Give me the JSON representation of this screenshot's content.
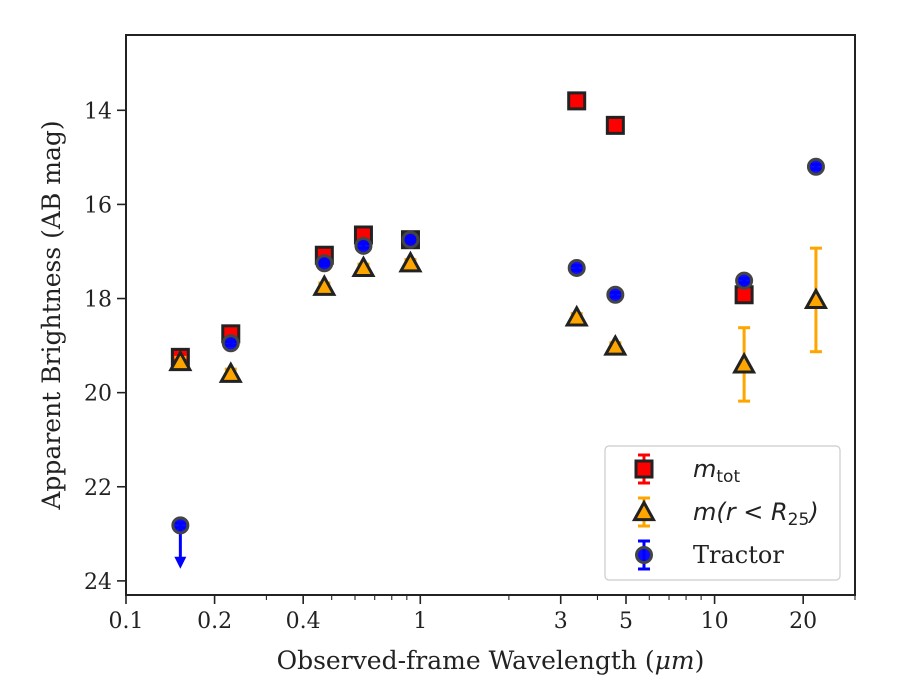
{
  "chart_data": {
    "type": "scatter",
    "xlabel_prefix": "Observed-frame Wavelength (",
    "xlabel_unit": "μm",
    "xlabel_suffix": ")",
    "ylabel": "Apparent Brightness (AB mag)",
    "xscale": "log",
    "xlim": [
      0.1,
      30
    ],
    "ylim": [
      24.3,
      12.4
    ],
    "y_inverted": true,
    "x_ticks": [
      {
        "value": 0.1,
        "label": "0.1"
      },
      {
        "value": 0.2,
        "label": "0.2"
      },
      {
        "value": 0.4,
        "label": "0.4"
      },
      {
        "value": 1,
        "label": "1"
      },
      {
        "value": 3,
        "label": "3"
      },
      {
        "value": 5,
        "label": "5"
      },
      {
        "value": 10,
        "label": "10"
      },
      {
        "value": 20,
        "label": "20"
      }
    ],
    "y_ticks": [
      {
        "value": 14,
        "label": "14"
      },
      {
        "value": 16,
        "label": "16"
      },
      {
        "value": 18,
        "label": "18"
      },
      {
        "value": 20,
        "label": "20"
      },
      {
        "value": 22,
        "label": "22"
      },
      {
        "value": 24,
        "label": "24"
      }
    ],
    "grid": false,
    "legend_position": "lower-right",
    "series": [
      {
        "key": "mtot",
        "legend": {
          "base": "m",
          "sub": "tot"
        },
        "marker": "square",
        "color": "#ff0000",
        "edgecolor": "#222222",
        "errcolor": "#ff0000",
        "points": [
          {
            "x": 0.153,
            "y": 19.25,
            "err": 0.15
          },
          {
            "x": 0.227,
            "y": 18.75,
            "err": 0.1
          },
          {
            "x": 0.472,
            "y": 17.08,
            "err": 0.1
          },
          {
            "x": 0.641,
            "y": 16.65,
            "err": 0.1
          },
          {
            "x": 0.926,
            "y": 16.75,
            "err": 0.1
          },
          {
            "x": 3.4,
            "y": 13.8,
            "err": 0.05
          },
          {
            "x": 4.6,
            "y": 14.32,
            "err": 0.05
          },
          {
            "x": 12.6,
            "y": 17.92,
            "err": 0.08
          }
        ]
      },
      {
        "key": "mr25",
        "legend": {
          "base": "m",
          "paren": "(r < R",
          "sub": "25",
          "close": ")"
        },
        "marker": "triangle",
        "color": "#ffa500",
        "edgecolor": "#222222",
        "errcolor": "#ffa500",
        "points": [
          {
            "x": 0.153,
            "y": 19.35,
            "err": 0.1
          },
          {
            "x": 0.227,
            "y": 19.6,
            "err": 0.1
          },
          {
            "x": 0.472,
            "y": 17.75,
            "err": 0.08
          },
          {
            "x": 0.641,
            "y": 17.35,
            "err": 0.08
          },
          {
            "x": 0.926,
            "y": 17.25,
            "err": 0.08
          },
          {
            "x": 3.4,
            "y": 18.4,
            "err": 0.08
          },
          {
            "x": 4.6,
            "y": 19.02,
            "err": 0.08
          },
          {
            "x": 12.6,
            "y": 19.4,
            "err": 0.78
          },
          {
            "x": 22.1,
            "y": 18.03,
            "err": 1.1
          }
        ]
      },
      {
        "key": "tractor",
        "legend": {
          "base": "Tractor"
        },
        "marker": "circle",
        "color": "#0000ff",
        "edgecolor": "#444444",
        "errcolor": "#0000ff",
        "points": [
          {
            "x": 0.153,
            "y": 22.82,
            "err": 0.05,
            "upper_limit": true,
            "limit_to": 23.7
          },
          {
            "x": 0.227,
            "y": 18.95,
            "err": 0.05
          },
          {
            "x": 0.472,
            "y": 17.25,
            "err": 0.05
          },
          {
            "x": 0.641,
            "y": 16.88,
            "err": 0.05
          },
          {
            "x": 0.926,
            "y": 16.75,
            "err": 0.05
          },
          {
            "x": 3.4,
            "y": 17.35,
            "err": 0.05
          },
          {
            "x": 4.6,
            "y": 17.92,
            "err": 0.05
          },
          {
            "x": 12.6,
            "y": 17.62,
            "err": 0.05
          },
          {
            "x": 22.1,
            "y": 15.2,
            "err": 0.05
          }
        ]
      }
    ]
  }
}
